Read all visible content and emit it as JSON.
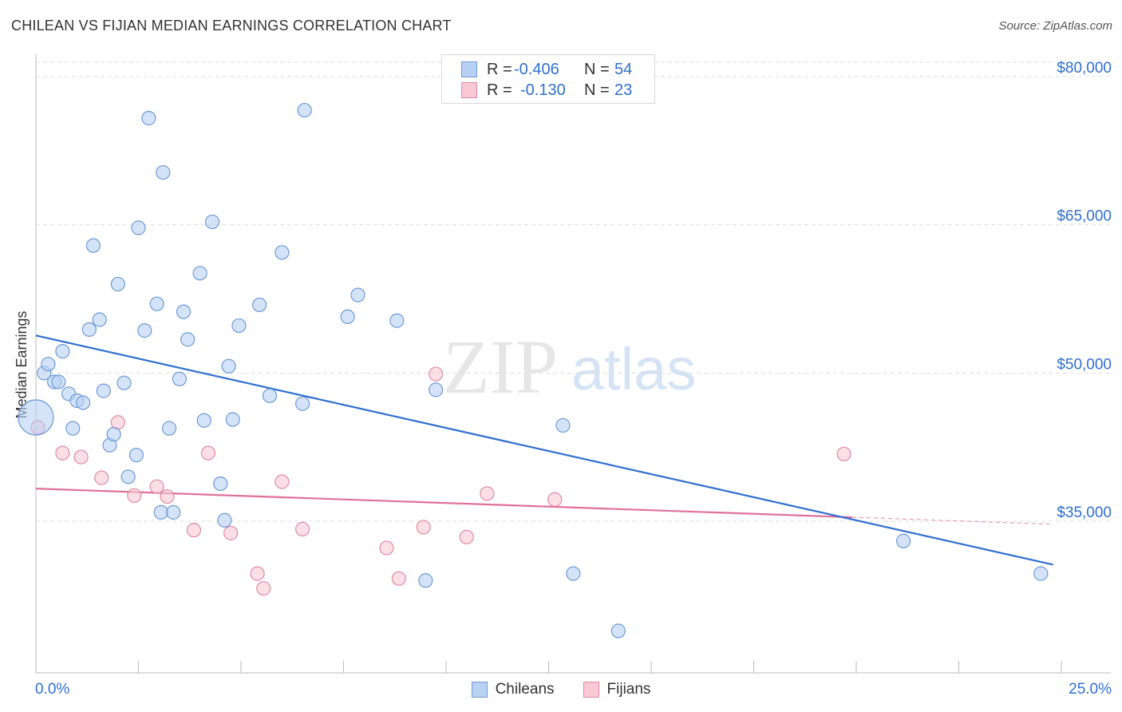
{
  "header": {
    "title": "CHILEAN VS FIJIAN MEDIAN EARNINGS CORRELATION CHART",
    "source": "Source: ZipAtlas.com"
  },
  "legend": {
    "r_label": "R =",
    "n_label": "N =",
    "series": [
      {
        "name": "Chileans",
        "r": "-0.406",
        "n": "54"
      },
      {
        "name": "Fijians",
        "r": "-0.130",
        "n": "23"
      }
    ]
  },
  "watermark": {
    "zip": "ZIP",
    "atlas": "atlas"
  },
  "colors": {
    "blue_fill": "#b8d1f3",
    "blue_stroke": "#6e9ad6",
    "blue_line": "#2f6fd0",
    "pink_fill": "#f8c8d6",
    "pink_stroke": "#e08aa6",
    "pink_line": "#e0709a",
    "axis_text": "#2f6fd0",
    "grid": "#dddddd"
  },
  "chart_data": {
    "type": "scatter",
    "title": "CHILEAN VS FIJIAN MEDIAN EARNINGS CORRELATION CHART",
    "xlabel": "",
    "ylabel": "Median Earnings",
    "xlim": [
      0,
      25
    ],
    "ylim": [
      21000,
      82000
    ],
    "x_tick_labels": [
      "0.0%",
      "25.0%"
    ],
    "y_ticks": [
      35000,
      50000,
      65000,
      80000
    ],
    "y_tick_labels": [
      "$35,000",
      "$50,000",
      "$65,000",
      "$80,000"
    ],
    "series": [
      {
        "name": "Chileans",
        "color": "#b8d1f3",
        "trend": {
          "x": [
            0,
            24.8
          ],
          "y": [
            53800,
            30600
          ]
        },
        "points": [
          {
            "x": 0.0,
            "y": 45500,
            "big": true
          },
          {
            "x": 0.2,
            "y": 50000
          },
          {
            "x": 0.3,
            "y": 50900
          },
          {
            "x": 0.45,
            "y": 49100
          },
          {
            "x": 0.55,
            "y": 49100
          },
          {
            "x": 0.65,
            "y": 52200
          },
          {
            "x": 0.8,
            "y": 47900
          },
          {
            "x": 0.9,
            "y": 44400
          },
          {
            "x": 1.0,
            "y": 47200
          },
          {
            "x": 1.15,
            "y": 47000
          },
          {
            "x": 1.3,
            "y": 54400
          },
          {
            "x": 1.4,
            "y": 62900
          },
          {
            "x": 1.55,
            "y": 55400
          },
          {
            "x": 1.65,
            "y": 48200
          },
          {
            "x": 1.8,
            "y": 42700
          },
          {
            "x": 1.9,
            "y": 43800
          },
          {
            "x": 2.0,
            "y": 59000
          },
          {
            "x": 2.15,
            "y": 49000
          },
          {
            "x": 2.25,
            "y": 39500
          },
          {
            "x": 2.45,
            "y": 41700
          },
          {
            "x": 2.5,
            "y": 64700
          },
          {
            "x": 2.65,
            "y": 54300
          },
          {
            "x": 2.75,
            "y": 75800
          },
          {
            "x": 2.95,
            "y": 57000
          },
          {
            "x": 3.05,
            "y": 35900
          },
          {
            "x": 3.1,
            "y": 70300
          },
          {
            "x": 3.25,
            "y": 44400
          },
          {
            "x": 3.35,
            "y": 35900
          },
          {
            "x": 3.5,
            "y": 49400
          },
          {
            "x": 3.6,
            "y": 56200
          },
          {
            "x": 3.7,
            "y": 53400
          },
          {
            "x": 4.0,
            "y": 60100
          },
          {
            "x": 4.1,
            "y": 45200
          },
          {
            "x": 4.3,
            "y": 65300
          },
          {
            "x": 4.5,
            "y": 38800
          },
          {
            "x": 4.6,
            "y": 35100
          },
          {
            "x": 4.7,
            "y": 50700
          },
          {
            "x": 4.8,
            "y": 45300
          },
          {
            "x": 4.95,
            "y": 54800
          },
          {
            "x": 5.45,
            "y": 56900
          },
          {
            "x": 5.7,
            "y": 47700
          },
          {
            "x": 6.0,
            "y": 62200
          },
          {
            "x": 6.5,
            "y": 46900
          },
          {
            "x": 6.55,
            "y": 76600
          },
          {
            "x": 7.6,
            "y": 55700
          },
          {
            "x": 7.85,
            "y": 57900
          },
          {
            "x": 8.8,
            "y": 55300
          },
          {
            "x": 9.5,
            "y": 29000
          },
          {
            "x": 9.75,
            "y": 48300
          },
          {
            "x": 12.85,
            "y": 44700
          },
          {
            "x": 13.1,
            "y": 29700
          },
          {
            "x": 14.2,
            "y": 23900
          },
          {
            "x": 21.15,
            "y": 33000
          },
          {
            "x": 24.5,
            "y": 29700
          }
        ]
      },
      {
        "name": "Fijians",
        "color": "#f8c8d6",
        "trend": {
          "x": [
            0,
            19.9
          ],
          "y": [
            38300,
            35400
          ]
        },
        "trend_dashed": {
          "x": [
            19.9,
            24.8
          ],
          "y": [
            35400,
            34700
          ]
        },
        "points": [
          {
            "x": 0.05,
            "y": 44500
          },
          {
            "x": 0.65,
            "y": 41900
          },
          {
            "x": 1.1,
            "y": 41500
          },
          {
            "x": 1.6,
            "y": 39400
          },
          {
            "x": 2.0,
            "y": 45000
          },
          {
            "x": 2.4,
            "y": 37600
          },
          {
            "x": 2.95,
            "y": 38500
          },
          {
            "x": 3.2,
            "y": 37500
          },
          {
            "x": 3.85,
            "y": 34100
          },
          {
            "x": 4.2,
            "y": 41900
          },
          {
            "x": 4.75,
            "y": 33800
          },
          {
            "x": 5.4,
            "y": 29700
          },
          {
            "x": 5.55,
            "y": 28200
          },
          {
            "x": 6.0,
            "y": 39000
          },
          {
            "x": 6.5,
            "y": 34200
          },
          {
            "x": 8.55,
            "y": 32300
          },
          {
            "x": 8.85,
            "y": 29200
          },
          {
            "x": 9.45,
            "y": 34400
          },
          {
            "x": 9.75,
            "y": 49900
          },
          {
            "x": 10.5,
            "y": 33400
          },
          {
            "x": 11.0,
            "y": 37800
          },
          {
            "x": 12.65,
            "y": 37200
          },
          {
            "x": 19.7,
            "y": 41800
          }
        ]
      }
    ]
  }
}
